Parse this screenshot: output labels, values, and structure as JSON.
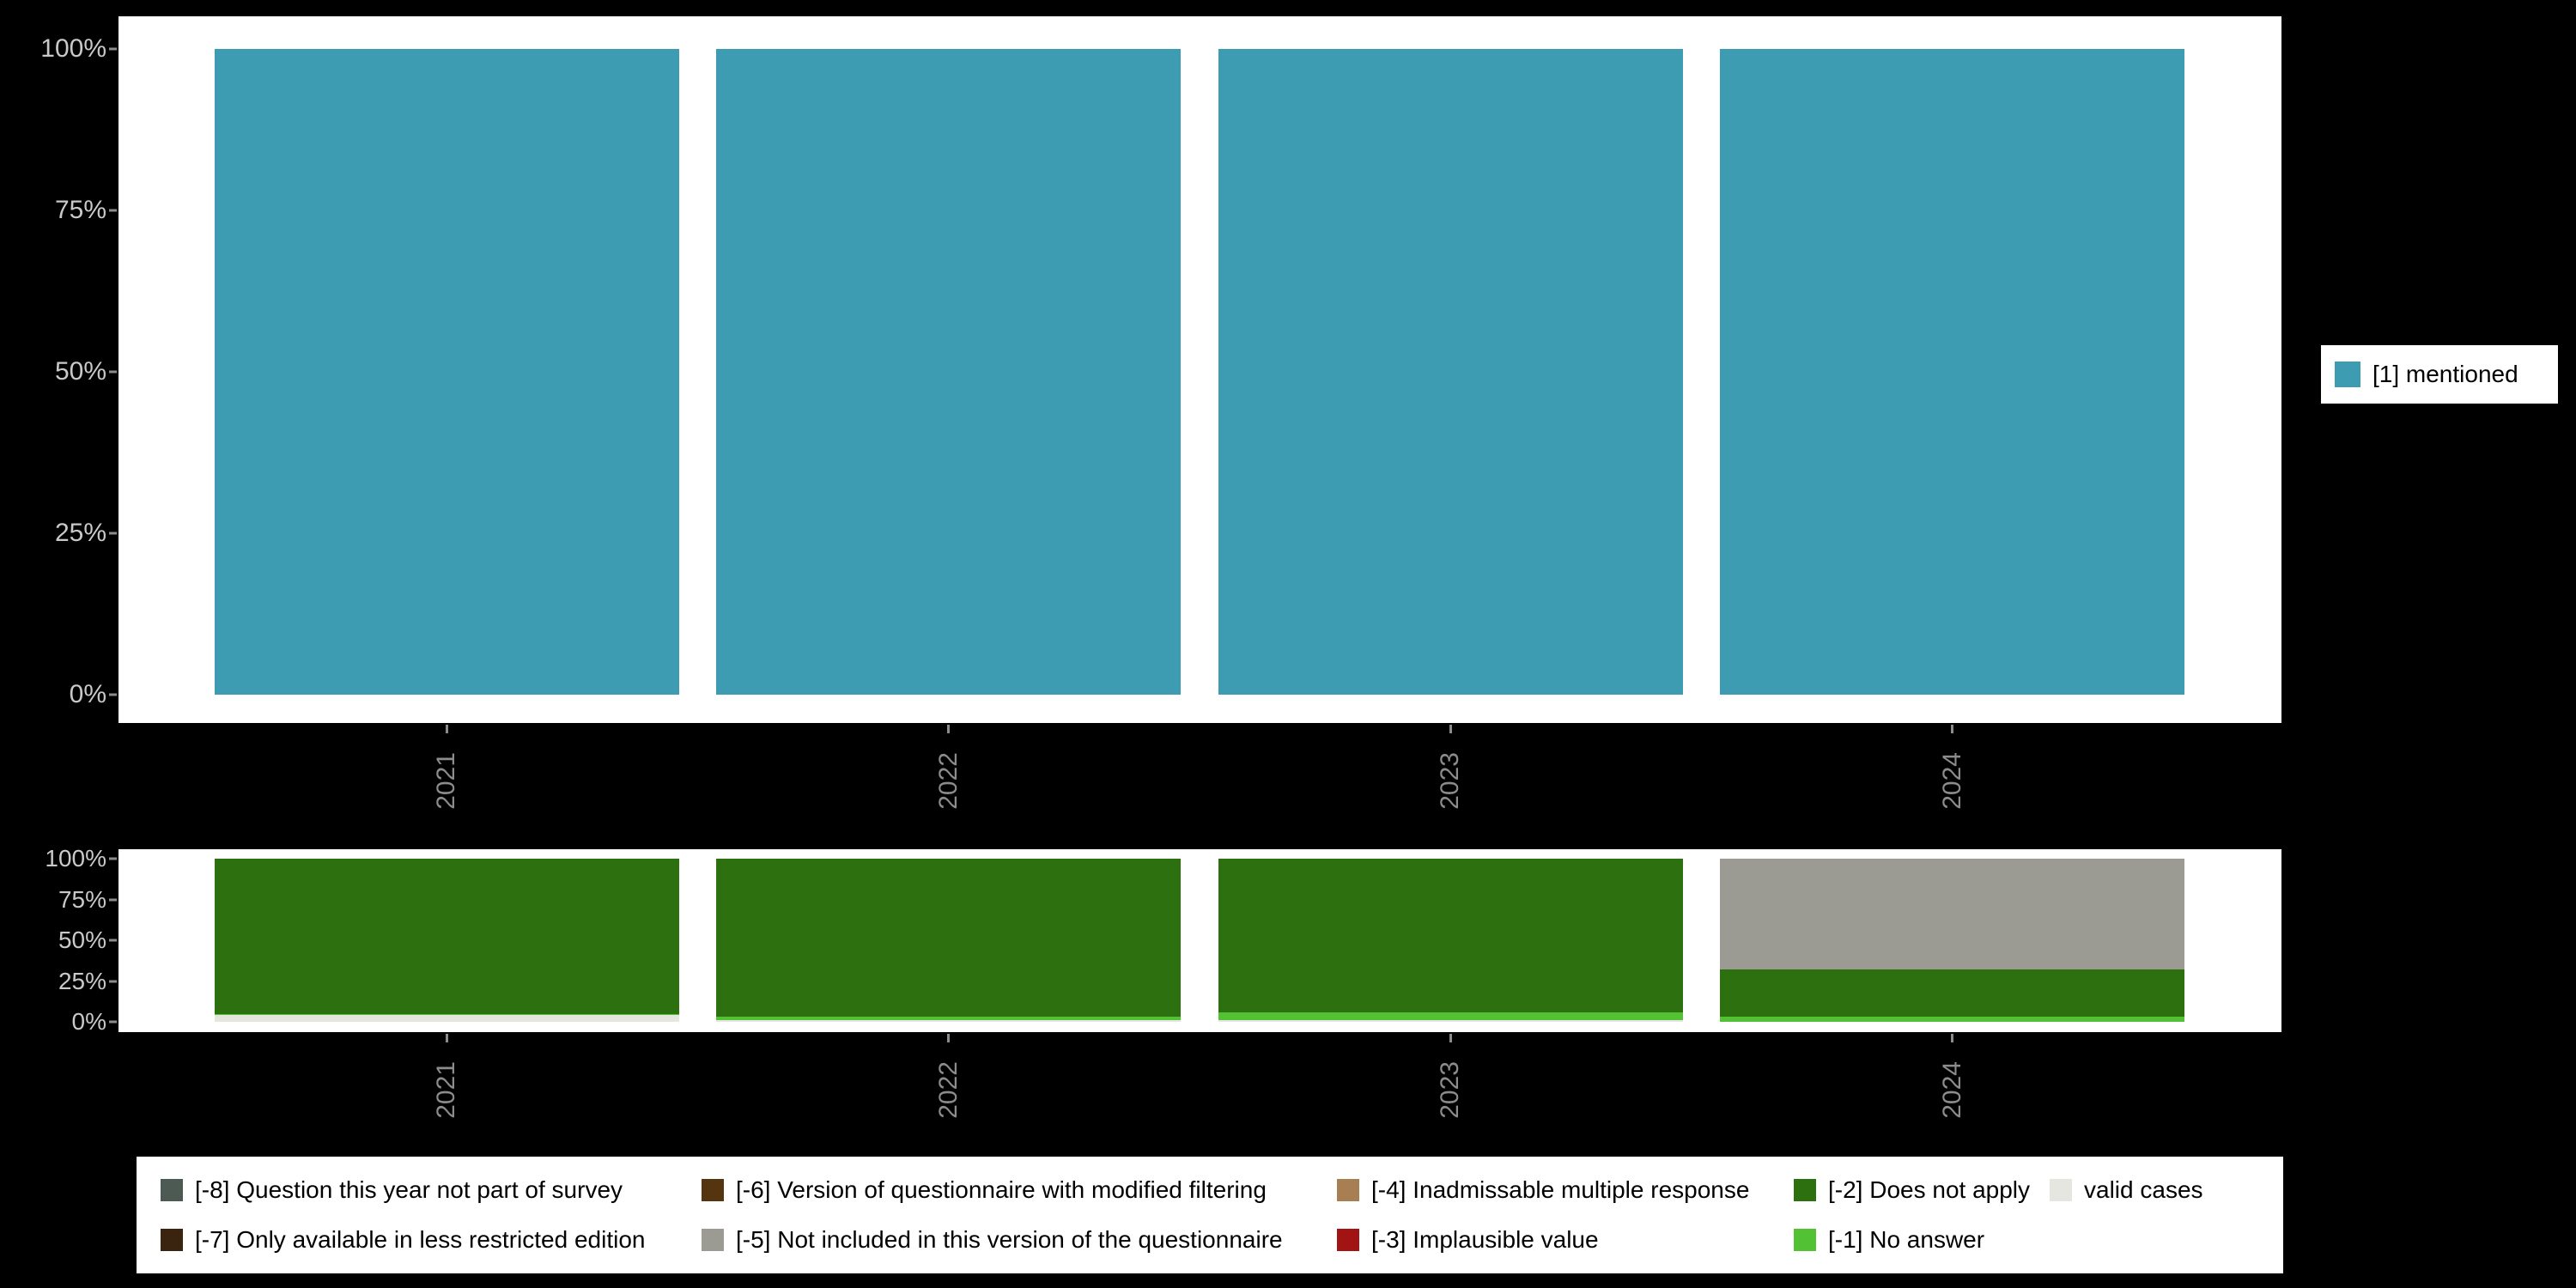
{
  "chart_data": [
    {
      "id": "mentioned-by-year",
      "type": "bar",
      "stacked": true,
      "categories": [
        "2021",
        "2022",
        "2023",
        "2024"
      ],
      "yticks": [
        "100%",
        "75%",
        "50%",
        "25%",
        "0%"
      ],
      "ylim": [
        0,
        100
      ],
      "grid": false,
      "series": [
        {
          "name": "[1] mentioned",
          "color": "#3d9bb2",
          "values": [
            100,
            100,
            100,
            100
          ]
        }
      ],
      "legend": {
        "position": "right",
        "items": [
          {
            "label": "[1] mentioned",
            "color": "#3d9bb2"
          }
        ]
      }
    },
    {
      "id": "missing-values-by-year",
      "type": "bar",
      "stacked": true,
      "categories": [
        "2021",
        "2022",
        "2023",
        "2024"
      ],
      "yticks": [
        "100%",
        "75%",
        "50%",
        "25%",
        "0%"
      ],
      "ylim": [
        0,
        100
      ],
      "grid": false,
      "series": [
        {
          "name": "valid cases",
          "color": "#e6e6e0",
          "values": [
            4,
            1,
            1,
            0
          ]
        },
        {
          "name": "[-1] No answer",
          "color": "#52c234",
          "values": [
            1,
            2,
            5,
            3
          ]
        },
        {
          "name": "[-2] Does not apply",
          "color": "#2d7010",
          "values": [
            95,
            97,
            94,
            29
          ]
        },
        {
          "name": "[-5] Not included in this version of the questionnaire",
          "color": "#9b9b93",
          "values": [
            0,
            0,
            0,
            68
          ]
        }
      ]
    }
  ],
  "missing_legend": {
    "items": [
      {
        "label": "[-8] Question this year not part of survey",
        "color": "#4d5953"
      },
      {
        "label": "[-6] Version of questionnaire with modified filtering",
        "color": "#54350f"
      },
      {
        "label": "[-4] Inadmissable multiple response",
        "color": "#a87f52"
      },
      {
        "label": "[-2] Does not apply",
        "color": "#2d7010"
      },
      {
        "label": "valid cases",
        "color": "#e6e6e0"
      },
      {
        "label": "[-7] Only available in less restricted edition",
        "color": "#3a2410"
      },
      {
        "label": "[-5] Not included in this version of the questionnaire",
        "color": "#9b9b93"
      },
      {
        "label": "[-3] Implausible value",
        "color": "#a21313"
      },
      {
        "label": "[-1] No answer",
        "color": "#52c234"
      }
    ]
  },
  "colors": {
    "background": "#000000",
    "panel": "#ffffff",
    "y_axis_text": "#c9c9c9",
    "x_axis_text": "#8c8c8c",
    "tick": "#8c8c8c",
    "legend_text": "#000000",
    "legend_background": "#ffffff"
  }
}
